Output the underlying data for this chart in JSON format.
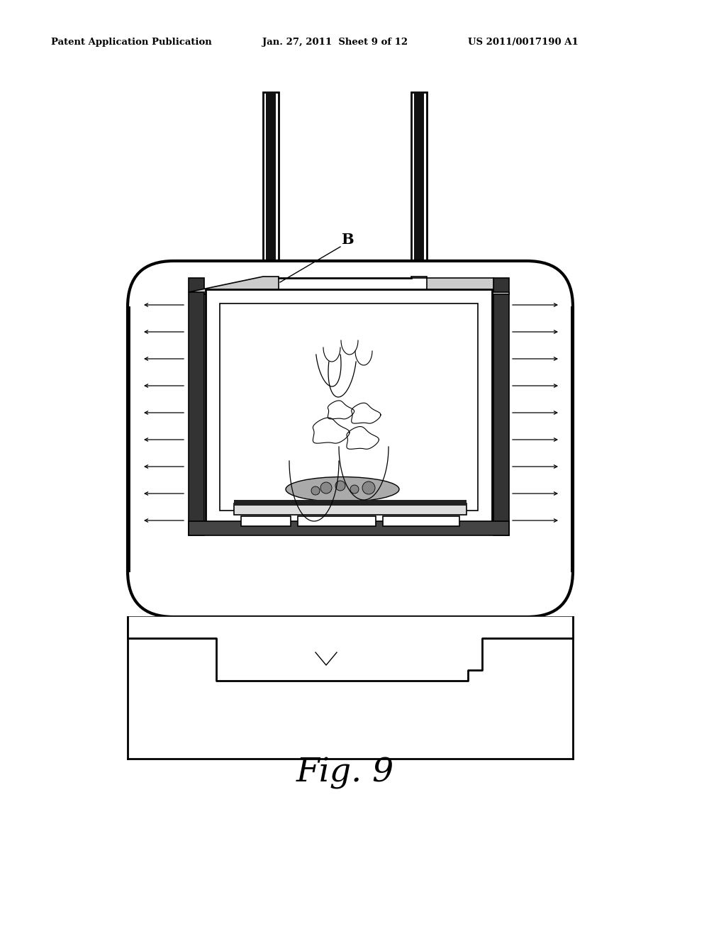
{
  "background_color": "#ffffff",
  "header_left": "Patent Application Publication",
  "header_mid": "Jan. 27, 2011  Sheet 9 of 12",
  "header_right": "US 2011/0017190 A1",
  "fig_label": "Fig. 9",
  "label_B": "B",
  "header_fontsize": 9.5,
  "fig_label_fontsize": 34,
  "lc": "#000000",
  "gray_dark": "#222222",
  "gray_med": "#555555",
  "gray_light": "#999999",
  "gray_panel": "#888888"
}
